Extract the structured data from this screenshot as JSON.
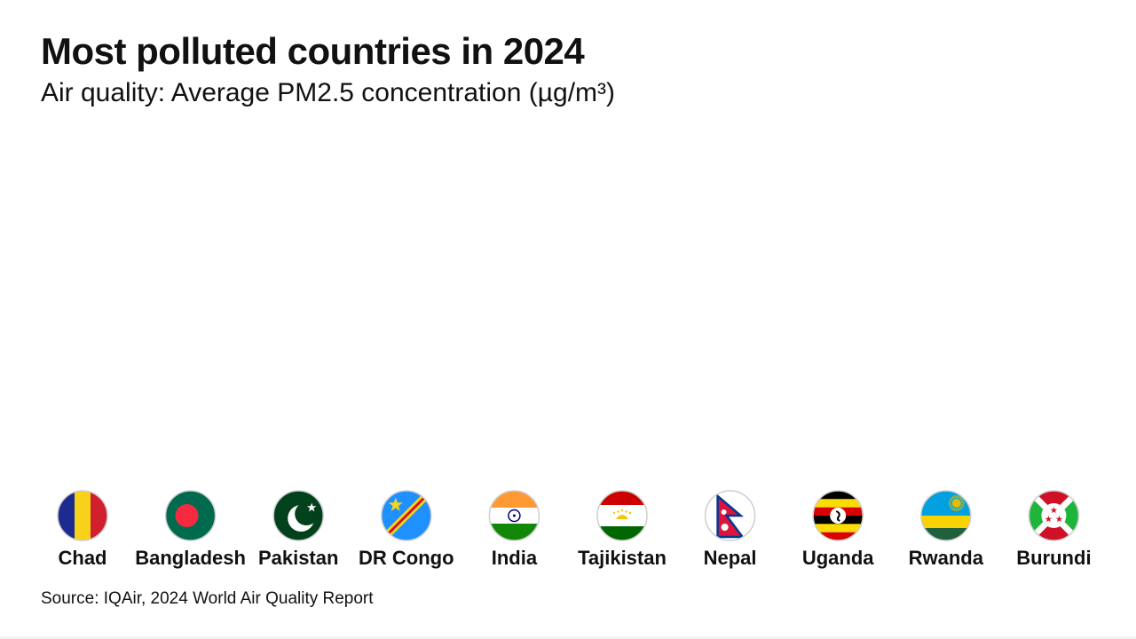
{
  "title": "Most polluted countries in 2024",
  "subtitle": "Air quality: Average PM2.5 concentration (µg/m³)",
  "source": "Source: IQAir, 2024 World Air Quality Report",
  "colors": {
    "background": "#ffffff",
    "text": "#111111",
    "bar": "#e0a43a"
  },
  "chart_data": {
    "type": "bar",
    "title": "Most polluted countries in 2024",
    "subtitle": "Air quality: Average PM2.5 concentration (µg/m³)",
    "xlabel": "",
    "ylabel": "",
    "grid": false,
    "legend": "none",
    "categories": [
      "Chad",
      "Bangladesh",
      "Pakistan",
      "DR Congo",
      "India",
      "Tajikistan",
      "Nepal",
      "Uganda",
      "Rwanda",
      "Burundi"
    ],
    "flag_icons": [
      "chad-flag",
      "bangladesh-flag",
      "pakistan-flag",
      "dr-congo-flag",
      "india-flag",
      "tajikistan-flag",
      "nepal-flag",
      "uganda-flag",
      "rwanda-flag",
      "burundi-flag"
    ],
    "values": [
      null,
      null,
      null,
      null,
      null,
      null,
      null,
      null,
      null,
      null
    ],
    "note": ""
  }
}
